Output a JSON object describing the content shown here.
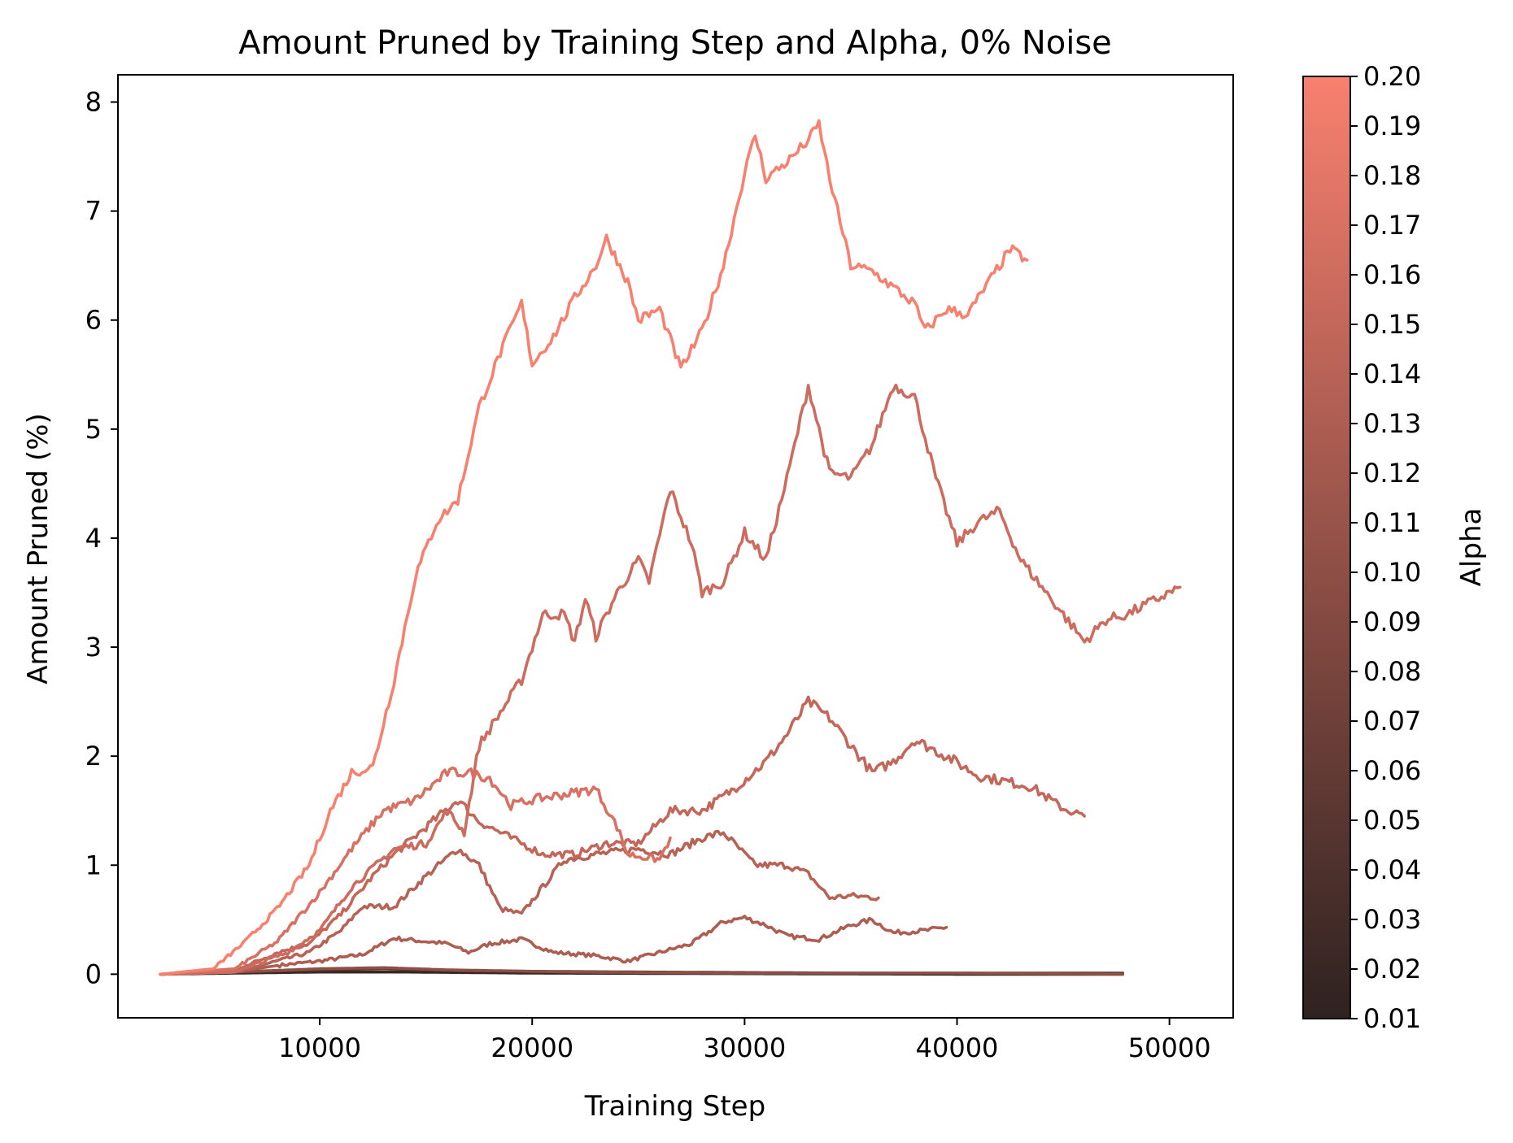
{
  "chart_data": {
    "type": "line",
    "title": "Amount Pruned by Training Step and Alpha, 0% Noise",
    "xlabel": "Training Step",
    "ylabel": "Amount Pruned (%)",
    "xlim": [
      500,
      53000
    ],
    "ylim": [
      -0.4,
      8.25
    ],
    "xticks": [
      10000,
      20000,
      30000,
      40000,
      50000
    ],
    "yticks": [
      0,
      1,
      2,
      3,
      4,
      5,
      6,
      7,
      8
    ],
    "grid": false,
    "colorbar": {
      "label": "Alpha",
      "range": [
        0.01,
        0.2
      ],
      "ticks": [
        "0.01",
        "0.02",
        "0.03",
        "0.04",
        "0.05",
        "0.06",
        "0.07",
        "0.08",
        "0.09",
        "0.10",
        "0.11",
        "0.12",
        "0.13",
        "0.14",
        "0.15",
        "0.16",
        "0.17",
        "0.18",
        "0.19",
        "0.20"
      ],
      "color_low": "#2e2220",
      "color_high": "#f8806f"
    },
    "series": [
      {
        "alpha": 0.02,
        "points": [
          [
            2500,
            0
          ],
          [
            6000,
            0.01
          ],
          [
            10000,
            0.02
          ],
          [
            14000,
            0.02
          ],
          [
            20000,
            0.01
          ],
          [
            30000,
            0.005
          ],
          [
            40000,
            0.0
          ],
          [
            47800,
            0.0
          ]
        ]
      },
      {
        "alpha": 0.05,
        "points": [
          [
            2500,
            0
          ],
          [
            6000,
            0.02
          ],
          [
            10000,
            0.04
          ],
          [
            13000,
            0.05
          ],
          [
            17000,
            0.03
          ],
          [
            25000,
            0.02
          ],
          [
            35000,
            0.01
          ],
          [
            47800,
            0.01
          ]
        ]
      },
      {
        "alpha": 0.1,
        "points": [
          [
            2500,
            0
          ],
          [
            6000,
            0.02
          ],
          [
            10000,
            0.05
          ],
          [
            13000,
            0.06
          ],
          [
            16000,
            0.04
          ],
          [
            22000,
            0.02
          ],
          [
            30000,
            0.01
          ],
          [
            40000,
            0.01
          ],
          [
            47800,
            0.0
          ]
        ]
      },
      {
        "alpha": 0.13,
        "points": [
          [
            2500,
            0
          ],
          [
            6000,
            0.02
          ],
          [
            8000,
            0.08
          ],
          [
            10000,
            0.12
          ],
          [
            12000,
            0.18
          ],
          [
            13500,
            0.33
          ],
          [
            15000,
            0.3
          ],
          [
            16000,
            0.28
          ],
          [
            17000,
            0.2
          ],
          [
            18000,
            0.28
          ],
          [
            19500,
            0.32
          ],
          [
            21000,
            0.2
          ],
          [
            23000,
            0.17
          ],
          [
            24500,
            0.12
          ],
          [
            26000,
            0.2
          ],
          [
            27500,
            0.28
          ],
          [
            29000,
            0.48
          ],
          [
            30000,
            0.52
          ],
          [
            31000,
            0.45
          ],
          [
            32000,
            0.35
          ],
          [
            33500,
            0.32
          ],
          [
            35000,
            0.45
          ],
          [
            36000,
            0.5
          ],
          [
            37000,
            0.38
          ],
          [
            38500,
            0.4
          ],
          [
            39500,
            0.43
          ]
        ]
      },
      {
        "alpha": 0.14,
        "points": [
          [
            2500,
            0
          ],
          [
            6000,
            0.02
          ],
          [
            8000,
            0.12
          ],
          [
            9500,
            0.2
          ],
          [
            11000,
            0.4
          ],
          [
            12000,
            0.62
          ],
          [
            13500,
            0.62
          ],
          [
            15000,
            0.9
          ],
          [
            16500,
            1.15
          ],
          [
            17500,
            1.0
          ],
          [
            18500,
            0.6
          ],
          [
            19500,
            0.55
          ],
          [
            20500,
            0.8
          ],
          [
            21500,
            1.05
          ],
          [
            23000,
            1.1
          ],
          [
            25000,
            1.15
          ],
          [
            26500,
            1.1
          ],
          [
            28000,
            1.25
          ],
          [
            29000,
            1.3
          ],
          [
            29500,
            1.2
          ],
          [
            30500,
            1.0
          ],
          [
            32000,
            1.0
          ],
          [
            33000,
            0.92
          ],
          [
            34000,
            0.7
          ],
          [
            35000,
            0.72
          ],
          [
            36300,
            0.7
          ]
        ]
      },
      {
        "alpha": 0.15,
        "points": [
          [
            2500,
            0
          ],
          [
            6000,
            0.03
          ],
          [
            8000,
            0.2
          ],
          [
            9500,
            0.28
          ],
          [
            11000,
            0.55
          ],
          [
            12500,
            0.9
          ],
          [
            13500,
            1.1
          ],
          [
            15000,
            1.35
          ],
          [
            16500,
            1.6
          ],
          [
            17500,
            1.4
          ],
          [
            18500,
            1.3
          ],
          [
            19500,
            1.2
          ],
          [
            20500,
            1.1
          ],
          [
            22000,
            1.1
          ],
          [
            23500,
            1.2
          ],
          [
            25000,
            1.2
          ],
          [
            26500,
            1.5
          ],
          [
            28000,
            1.5
          ],
          [
            29500,
            1.7
          ],
          [
            31000,
            1.95
          ],
          [
            32000,
            2.2
          ],
          [
            33000,
            2.5
          ],
          [
            34000,
            2.35
          ],
          [
            35000,
            2.1
          ],
          [
            36000,
            1.85
          ],
          [
            37000,
            1.95
          ],
          [
            38000,
            2.15
          ],
          [
            39500,
            2.0
          ],
          [
            41000,
            1.82
          ],
          [
            42000,
            1.78
          ],
          [
            43500,
            1.72
          ],
          [
            45000,
            1.52
          ],
          [
            46000,
            1.45
          ]
        ]
      },
      {
        "alpha": 0.16,
        "points": [
          [
            2500,
            0
          ],
          [
            6000,
            0.02
          ],
          [
            8500,
            0.2
          ],
          [
            10000,
            0.4
          ],
          [
            11500,
            0.8
          ],
          [
            13500,
            1.15
          ],
          [
            15000,
            1.2
          ],
          [
            16000,
            1.5
          ],
          [
            16800,
            1.3
          ],
          [
            17500,
            2.1
          ],
          [
            18500,
            2.4
          ],
          [
            19500,
            2.7
          ],
          [
            20500,
            3.3
          ],
          [
            21500,
            3.3
          ],
          [
            22000,
            3.05
          ],
          [
            22500,
            3.45
          ],
          [
            23000,
            3.1
          ],
          [
            24000,
            3.5
          ],
          [
            25000,
            3.8
          ],
          [
            25500,
            3.6
          ],
          [
            26500,
            4.45
          ],
          [
            27500,
            3.95
          ],
          [
            28000,
            3.5
          ],
          [
            29000,
            3.6
          ],
          [
            30000,
            4.05
          ],
          [
            31000,
            3.8
          ],
          [
            32000,
            4.55
          ],
          [
            33000,
            5.4
          ],
          [
            34000,
            4.6
          ],
          [
            35000,
            4.55
          ],
          [
            36000,
            4.85
          ],
          [
            37000,
            5.4
          ],
          [
            38000,
            5.3
          ],
          [
            39000,
            4.55
          ],
          [
            40000,
            3.95
          ],
          [
            41000,
            4.15
          ],
          [
            42000,
            4.25
          ],
          [
            43000,
            3.8
          ],
          [
            44000,
            3.55
          ],
          [
            45000,
            3.3
          ],
          [
            46000,
            3.05
          ],
          [
            47000,
            3.25
          ],
          [
            48000,
            3.3
          ],
          [
            49000,
            3.4
          ],
          [
            50000,
            3.5
          ],
          [
            50500,
            3.55
          ]
        ]
      },
      {
        "alpha": 0.17,
        "points": [
          [
            2500,
            0
          ],
          [
            6000,
            0.05
          ],
          [
            8000,
            0.3
          ],
          [
            10000,
            0.75
          ],
          [
            11500,
            1.15
          ],
          [
            13000,
            1.5
          ],
          [
            14500,
            1.6
          ],
          [
            16000,
            1.85
          ],
          [
            17000,
            1.85
          ],
          [
            18000,
            1.8
          ],
          [
            19000,
            1.55
          ],
          [
            20000,
            1.6
          ],
          [
            21500,
            1.65
          ],
          [
            23000,
            1.7
          ],
          [
            24000,
            1.35
          ],
          [
            24500,
            1.1
          ],
          [
            26000,
            1.05
          ],
          [
            26500,
            1.25
          ]
        ]
      },
      {
        "alpha": 0.2,
        "points": [
          [
            2500,
            0
          ],
          [
            5000,
            0.05
          ],
          [
            6500,
            0.3
          ],
          [
            8000,
            0.6
          ],
          [
            9500,
            1.0
          ],
          [
            10500,
            1.5
          ],
          [
            11500,
            1.85
          ],
          [
            12500,
            1.9
          ],
          [
            13500,
            2.7
          ],
          [
            14500,
            3.65
          ],
          [
            15500,
            4.15
          ],
          [
            16500,
            4.35
          ],
          [
            17500,
            5.2
          ],
          [
            18500,
            5.7
          ],
          [
            19500,
            6.15
          ],
          [
            20000,
            5.6
          ],
          [
            21000,
            5.85
          ],
          [
            22000,
            6.2
          ],
          [
            23000,
            6.5
          ],
          [
            23500,
            6.75
          ],
          [
            24500,
            6.35
          ],
          [
            25000,
            6.0
          ],
          [
            26000,
            6.1
          ],
          [
            27000,
            5.55
          ],
          [
            28000,
            5.9
          ],
          [
            29000,
            6.5
          ],
          [
            30000,
            7.35
          ],
          [
            30500,
            7.7
          ],
          [
            31000,
            7.3
          ],
          [
            32000,
            7.45
          ],
          [
            33000,
            7.65
          ],
          [
            33500,
            7.8
          ],
          [
            34000,
            7.3
          ],
          [
            35000,
            6.5
          ],
          [
            36000,
            6.45
          ],
          [
            37000,
            6.3
          ],
          [
            38000,
            6.15
          ],
          [
            38500,
            5.9
          ],
          [
            39500,
            6.1
          ],
          [
            40500,
            6.05
          ],
          [
            41500,
            6.35
          ],
          [
            42500,
            6.65
          ],
          [
            43300,
            6.55
          ]
        ]
      }
    ]
  }
}
